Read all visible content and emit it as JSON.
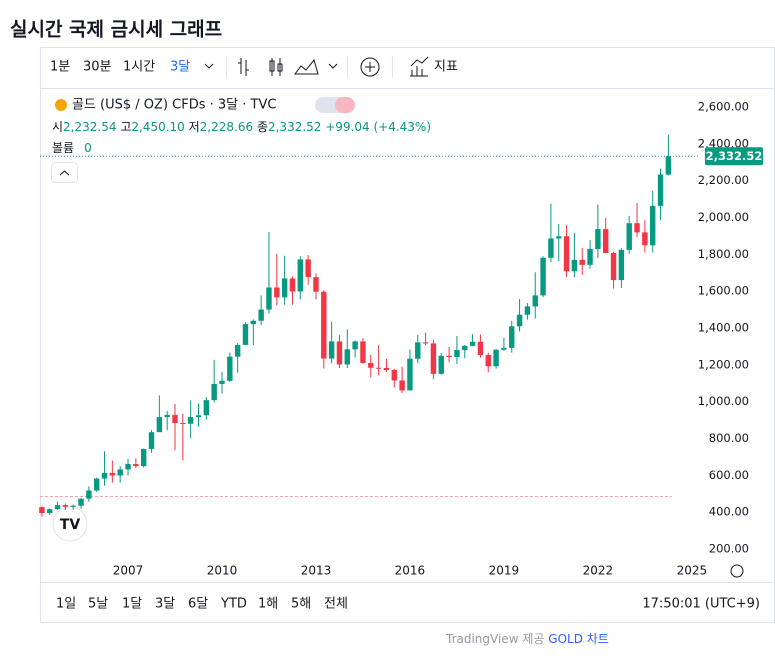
{
  "page_title": "실시간 국제 금시세 그래프",
  "toolbar": {
    "intervals": [
      "1분",
      "30분",
      "1시간",
      "3달"
    ],
    "indicators": "지표"
  },
  "chart_data": {
    "type": "candlestick",
    "legend": {
      "symbol": "골드 (US$ / OZ) CFDs · 3달 · TVC",
      "open_prefix": "시",
      "open": "2,232.54",
      "high_prefix": "고",
      "high": "2,450.10",
      "low_prefix": "저",
      "low": "2,228.66",
      "close_prefix": "종",
      "close": "2,332.52",
      "change": "+99.04 (+4.43%)",
      "volume_label": "볼륨",
      "volume": "0"
    },
    "last_label": "2,332.52",
    "up_color": "#089981",
    "down_color": "#f23645",
    "x": [
      2004.25,
      2004.5,
      2004.75,
      2005,
      2005.25,
      2005.5,
      2005.75,
      2006,
      2006.25,
      2006.5,
      2006.75,
      2007,
      2007.25,
      2007.5,
      2007.75,
      2008,
      2008.25,
      2008.5,
      2008.75,
      2009,
      2009.25,
      2009.5,
      2009.75,
      2010,
      2010.25,
      2010.5,
      2010.75,
      2011,
      2011.25,
      2011.5,
      2011.75,
      2012,
      2012.25,
      2012.5,
      2012.75,
      2013,
      2013.25,
      2013.5,
      2013.75,
      2014,
      2014.25,
      2014.5,
      2014.75,
      2015,
      2015.25,
      2015.5,
      2015.75,
      2016,
      2016.25,
      2016.5,
      2016.75,
      2017,
      2017.25,
      2017.5,
      2017.75,
      2018,
      2018.25,
      2018.5,
      2018.75,
      2019,
      2019.25,
      2019.5,
      2019.75,
      2020,
      2020.25,
      2020.5,
      2020.75,
      2021,
      2021.25,
      2021.5,
      2021.75,
      2022,
      2022.25,
      2022.5,
      2022.75,
      2023,
      2023.25,
      2023.5,
      2023.75,
      2024,
      2024.25
    ],
    "open": [
      427,
      395,
      416,
      438,
      429,
      435,
      473,
      517,
      582,
      613,
      599,
      632,
      661,
      650,
      743,
      834,
      916,
      928,
      884,
      880,
      916,
      926,
      1008,
      1096,
      1113,
      1244,
      1308,
      1421,
      1439,
      1500,
      1620,
      1566,
      1669,
      1598,
      1772,
      1676,
      1597,
      1234,
      1327,
      1202,
      1284,
      1327,
      1210,
      1184,
      1183,
      1172,
      1115,
      1061,
      1233,
      1322,
      1316,
      1151,
      1249,
      1242,
      1280,
      1303,
      1325,
      1253,
      1192,
      1282,
      1292,
      1409,
      1472,
      1517,
      1577,
      1781,
      1886,
      1898,
      1708,
      1770,
      1743,
      1829,
      1937,
      1807,
      1660,
      1824,
      1969,
      1919,
      1849,
      2063,
      2232.54
    ],
    "high": [
      432,
      420,
      456,
      447,
      441,
      475,
      540,
      587,
      730,
      680,
      650,
      690,
      692,
      745,
      845,
      1033,
      950,
      988,
      935,
      1007,
      990,
      1025,
      1227,
      1161,
      1266,
      1318,
      1432,
      1447,
      1577,
      1921,
      1803,
      1792,
      1680,
      1790,
      1796,
      1697,
      1605,
      1434,
      1361,
      1392,
      1332,
      1345,
      1255,
      1307,
      1232,
      1178,
      1191,
      1283,
      1362,
      1375,
      1337,
      1264,
      1296,
      1357,
      1307,
      1366,
      1365,
      1265,
      1285,
      1347,
      1439,
      1557,
      1535,
      1703,
      1789,
      2075,
      1965,
      1959,
      1916,
      1834,
      1877,
      2070,
      1998,
      1814,
      1833,
      2009,
      2079,
      1987,
      2146,
      2265,
      2450.1
    ],
    "low": [
      375,
      385,
      410,
      411,
      413,
      418,
      456,
      510,
      543,
      560,
      560,
      600,
      640,
      642,
      723,
      835,
      845,
      735,
      681,
      800,
      865,
      902,
      995,
      1044,
      1107,
      1157,
      1308,
      1308,
      1417,
      1478,
      1523,
      1527,
      1527,
      1555,
      1635,
      1555,
      1180,
      1208,
      1182,
      1182,
      1240,
      1206,
      1131,
      1142,
      1162,
      1077,
      1046,
      1061,
      1208,
      1306,
      1123,
      1146,
      1214,
      1204,
      1236,
      1302,
      1238,
      1160,
      1180,
      1276,
      1266,
      1381,
      1445,
      1451,
      1567,
      1757,
      1764,
      1677,
      1677,
      1688,
      1722,
      1780,
      1805,
      1614,
      1617,
      1804,
      1893,
      1810,
      1810,
      1985,
      2228.66
    ],
    "close": [
      395,
      416,
      438,
      429,
      435,
      473,
      517,
      582,
      613,
      599,
      632,
      661,
      650,
      743,
      834,
      916,
      928,
      884,
      880,
      916,
      926,
      1008,
      1096,
      1113,
      1244,
      1308,
      1421,
      1439,
      1500,
      1620,
      1566,
      1669,
      1598,
      1772,
      1676,
      1597,
      1234,
      1327,
      1202,
      1284,
      1327,
      1210,
      1184,
      1183,
      1172,
      1115,
      1061,
      1233,
      1322,
      1316,
      1151,
      1249,
      1242,
      1280,
      1303,
      1325,
      1253,
      1192,
      1282,
      1292,
      1409,
      1472,
      1517,
      1577,
      1781,
      1886,
      1898,
      1708,
      1770,
      1743,
      1829,
      1937,
      1807,
      1660,
      1824,
      1969,
      1919,
      1849,
      2063,
      2233.48,
      2332.52
    ],
    "xlim": [
      2004.19,
      2025.26
    ],
    "xticks": [
      2007,
      2010,
      2013,
      2016,
      2019,
      2022,
      2025
    ],
    "ylim": [
      140,
      2676
    ],
    "yticks": [
      {
        "value": 200,
        "label": "200.00"
      },
      {
        "value": 400,
        "label": "400.00"
      },
      {
        "value": 600,
        "label": "600.00"
      },
      {
        "value": 800,
        "label": "800.00"
      },
      {
        "value": 1000,
        "label": "1,000.00"
      },
      {
        "value": 1200,
        "label": "1,200.00"
      },
      {
        "value": 1400,
        "label": "1,400.00"
      },
      {
        "value": 1600,
        "label": "1,600.00"
      },
      {
        "value": 1800,
        "label": "1,800.00"
      },
      {
        "value": 2000,
        "label": "2,000.00"
      },
      {
        "value": 2200,
        "label": "2,200.00"
      },
      {
        "value": 2400,
        "label": "2,400.00"
      },
      {
        "value": 2600,
        "label": "2,600.00"
      }
    ]
  },
  "bottom_bar": {
    "ranges": [
      "1일",
      "5날",
      "1달",
      "3달",
      "6달",
      "YTD",
      "1해",
      "5해",
      "전체"
    ],
    "clock": "17:50:01 (UTC+9)"
  },
  "footer": {
    "provider": "TradingView",
    "provided": "제공",
    "link": "GOLD 차트"
  }
}
